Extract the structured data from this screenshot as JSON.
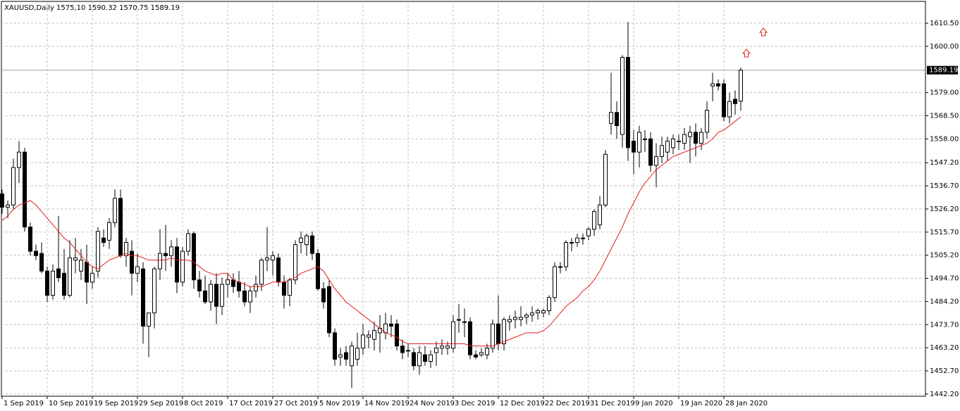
{
  "chart_data": {
    "type": "candlestick",
    "title": "XAUUSD,Daily  1575,10 1590.32 1570.75 1589.19",
    "categories": [
      "1 Sep 2019",
      null,
      null,
      null,
      null,
      null,
      null,
      null,
      "10 Sep 2019",
      null,
      null,
      null,
      null,
      null,
      null,
      null,
      "19 Sep 2019",
      null,
      null,
      null,
      null,
      null,
      null,
      null,
      "29 Sep 2019",
      null,
      null,
      null,
      null,
      null,
      null,
      null,
      "8 Oct 2019",
      null,
      null,
      null,
      null,
      null,
      null,
      null,
      "17 Oct 2019",
      null,
      null,
      null,
      null,
      null,
      null,
      null,
      "27 Oct 2019",
      null,
      null,
      null,
      null,
      null,
      null,
      null,
      "5 Nov 2019",
      null,
      null,
      null,
      null,
      null,
      null,
      null,
      "14 Nov 2019",
      null,
      null,
      null,
      null,
      null,
      null,
      null,
      "24 Nov 2019",
      null,
      null,
      null,
      null,
      null,
      null,
      null,
      "3 Dec 2019",
      null,
      null,
      null,
      null,
      null,
      null,
      null,
      "12 Dec 2019",
      null,
      null,
      null,
      null,
      null,
      null,
      null,
      "22 Dec 2019",
      null,
      null,
      null,
      null,
      null,
      null,
      null,
      "31 Dec 2019",
      null,
      null,
      null,
      null,
      null,
      null,
      null,
      "9 Jan 2020",
      null,
      null,
      null,
      null,
      null,
      null,
      null,
      "19 Jan 2020",
      null,
      null,
      null,
      null,
      null,
      null,
      null,
      "28 Jan 2020",
      null,
      null,
      null
    ],
    "open": [
      1533,
      1527,
      1528,
      1545,
      1552,
      1518,
      1507,
      1506,
      1498,
      1487,
      1499,
      1497,
      1487,
      1503,
      1498,
      1502,
      1493,
      1498,
      1513,
      1512,
      1520,
      1531,
      1505,
      1507,
      1497,
      1499,
      1473,
      1479,
      1499,
      1506,
      1505,
      1509,
      1493,
      1507,
      1515,
      1494,
      1489,
      1484,
      1492,
      1482,
      1492,
      1494,
      1493,
      1489,
      1484,
      1489,
      1492,
      1503,
      1503,
      1504,
      1493,
      1487,
      1494,
      1511,
      1510,
      1514,
      1506,
      1490,
      1491,
      1470,
      1459,
      1461,
      1455,
      1458,
      1463,
      1468,
      1467,
      1470,
      1470,
      1474,
      1474,
      1464,
      1462,
      1461,
      1455,
      1460,
      1457,
      1461,
      1463,
      1463,
      1463,
      1476,
      1475,
      1475,
      1460,
      1460,
      1460,
      1463,
      1474,
      1465,
      1475,
      1476,
      1476,
      1477,
      1478,
      1479,
      1479,
      1480,
      1486,
      1500,
      1500,
      1511,
      1511,
      1513,
      1514,
      1517,
      1519,
      1528,
      1565,
      1570,
      1560,
      1595,
      1557,
      1552,
      1558,
      1558,
      1546,
      1550,
      1552,
      1554,
      1557,
      1556,
      1559,
      1561,
      1556,
      1561,
      1582,
      1583,
      1583,
      1568,
      1576,
      1575.1
    ],
    "high": [
      1535,
      1530,
      1549,
      1557,
      1554,
      1520,
      1510,
      1511,
      1500,
      1501,
      1523,
      1508,
      1512,
      1513,
      1508,
      1510,
      1500,
      1518,
      1517,
      1522,
      1535,
      1535,
      1513,
      1512,
      1506,
      1502,
      1479,
      1500,
      1517,
      1519,
      1512,
      1513,
      1509,
      1517,
      1516,
      1498,
      1496,
      1494,
      1497,
      1495,
      1497,
      1497,
      1498,
      1493,
      1491,
      1496,
      1504,
      1518,
      1507,
      1506,
      1496,
      1495,
      1512,
      1516,
      1515,
      1516,
      1508,
      1493,
      1494,
      1472,
      1463,
      1464,
      1466,
      1470,
      1474,
      1471,
      1475,
      1478,
      1479,
      1478,
      1476,
      1467,
      1465,
      1463,
      1464,
      1464,
      1462,
      1466,
      1467,
      1466,
      1478,
      1483,
      1481,
      1477,
      1462,
      1463,
      1465,
      1476,
      1487,
      1477,
      1478,
      1480,
      1482,
      1479,
      1482,
      1481,
      1481,
      1487,
      1502,
      1502,
      1512,
      1513,
      1515,
      1515,
      1518,
      1526,
      1532,
      1553,
      1588,
      1575,
      1596,
      1611,
      1562,
      1564,
      1562,
      1561,
      1556,
      1559,
      1559,
      1560,
      1560,
      1563,
      1564,
      1565,
      1563,
      1575,
      1588,
      1585,
      1585,
      1579,
      1580,
      1590.32
    ],
    "low": [
      1524,
      1522,
      1526,
      1538,
      1516,
      1505,
      1503,
      1497,
      1484,
      1485,
      1493,
      1485,
      1486,
      1497,
      1494,
      1483,
      1490,
      1495,
      1509,
      1508,
      1518,
      1504,
      1500,
      1487,
      1493,
      1465,
      1459,
      1472,
      1494,
      1498,
      1500,
      1488,
      1491,
      1505,
      1490,
      1486,
      1483,
      1480,
      1474,
      1478,
      1486,
      1488,
      1486,
      1482,
      1479,
      1486,
      1489,
      1498,
      1496,
      1491,
      1481,
      1482,
      1492,
      1506,
      1505,
      1503,
      1489,
      1481,
      1468,
      1455,
      1455,
      1455,
      1445,
      1455,
      1460,
      1463,
      1462,
      1461,
      1467,
      1468,
      1462,
      1458,
      1459,
      1453,
      1451,
      1455,
      1454,
      1455,
      1460,
      1460,
      1461,
      1470,
      1468,
      1458,
      1458,
      1459,
      1458,
      1461,
      1462,
      1462,
      1471,
      1472,
      1473,
      1474,
      1475,
      1476,
      1477,
      1478,
      1484,
      1497,
      1498,
      1507,
      1509,
      1510,
      1512,
      1514,
      1517,
      1527,
      1560,
      1558,
      1554,
      1548,
      1542,
      1545,
      1552,
      1543,
      1536,
      1547,
      1548,
      1551,
      1553,
      1553,
      1547,
      1550,
      1553,
      1558,
      1575,
      1580,
      1566,
      1565,
      1569,
      1570.75
    ],
    "close": [
      1527,
      1528,
      1545,
      1552,
      1518,
      1507,
      1505,
      1498,
      1487,
      1498,
      1495,
      1487,
      1504,
      1504,
      1503,
      1493,
      1497,
      1516,
      1511,
      1520,
      1531,
      1505,
      1511,
      1497,
      1500,
      1473,
      1479,
      1499,
      1506,
      1505,
      1509,
      1493,
      1507,
      1515,
      1494,
      1489,
      1484,
      1492,
      1482,
      1492,
      1494,
      1491,
      1489,
      1484,
      1489,
      1492,
      1503,
      1504,
      1505,
      1493,
      1487,
      1494,
      1510,
      1513,
      1514,
      1506,
      1490,
      1484,
      1470,
      1458,
      1460,
      1458,
      1464,
      1463,
      1469,
      1469,
      1471,
      1472,
      1474,
      1473,
      1464,
      1461,
      1462,
      1455,
      1461,
      1457,
      1460,
      1463,
      1464,
      1464,
      1475,
      1476,
      1475,
      1460,
      1459,
      1461,
      1463,
      1474,
      1465,
      1476,
      1476,
      1477,
      1477,
      1478,
      1479,
      1480,
      1480,
      1486,
      1500,
      1500,
      1511,
      1511,
      1513,
      1513,
      1517,
      1525,
      1528,
      1551,
      1570,
      1564,
      1595,
      1554,
      1552,
      1561,
      1558,
      1546,
      1550,
      1555,
      1557,
      1558,
      1557,
      1560,
      1561,
      1556,
      1561,
      1571,
      1583,
      1582,
      1568,
      1575,
      1574,
      1589.19
    ],
    "ma_values": [
      1521,
      1523,
      1526,
      1528,
      1529,
      1530,
      1528,
      1525,
      1522,
      1519,
      1516,
      1513,
      1511,
      1508,
      1505,
      1502,
      1500,
      1499,
      1501,
      1503,
      1504,
      1505,
      1506,
      1505,
      1505,
      1504,
      1503,
      1503,
      1503,
      1503,
      1504,
      1503,
      1503,
      1503,
      1502,
      1500,
      1498,
      1497,
      1496,
      1497,
      1497,
      1494,
      1493,
      1492,
      1491,
      1491,
      1491,
      1492,
      1493,
      1493,
      1493,
      1494,
      1495,
      1497,
      1498,
      1499,
      1500,
      1498,
      1494,
      1490,
      1487,
      1484,
      1482,
      1480,
      1478,
      1476,
      1474,
      1472,
      1470,
      1469,
      1468,
      1466,
      1465,
      1465,
      1465,
      1465,
      1465,
      1465,
      1465,
      1465,
      1465,
      1465,
      1465,
      1464,
      1464,
      1464,
      1464,
      1464,
      1465,
      1466,
      1467,
      1468,
      1469,
      1470,
      1470,
      1470,
      1471,
      1473,
      1476,
      1479,
      1482,
      1484,
      1486,
      1489,
      1491,
      1494,
      1498,
      1503,
      1508,
      1513,
      1518,
      1524,
      1529,
      1534,
      1538,
      1541,
      1544,
      1546,
      1548,
      1550,
      1551,
      1552,
      1553,
      1554,
      1555,
      1556,
      1558,
      1561,
      1562,
      1564,
      1566,
      1568
    ],
    "ma_color": "#e02020",
    "up_color": "#ffffff",
    "down_color": "#000000",
    "last_price": 1589.19,
    "ylim": [
      1441.2,
      1620.4
    ],
    "yticks": [
      {
        "value": 1610.5,
        "label": "1610.50"
      },
      {
        "value": 1600,
        "label": "1600.00"
      },
      {
        "value": 1579,
        "label": "1579.00"
      },
      {
        "value": 1568.5,
        "label": "1568.50"
      },
      {
        "value": 1558,
        "label": "1558.00"
      },
      {
        "value": 1547.2,
        "label": "1547.20"
      },
      {
        "value": 1536.7,
        "label": "1536.70"
      },
      {
        "value": 1526.2,
        "label": "1526.20"
      },
      {
        "value": 1515.7,
        "label": "1515.70"
      },
      {
        "value": 1505.2,
        "label": "1505.20"
      },
      {
        "value": 1494.7,
        "label": "1494.70"
      },
      {
        "value": 1484.2,
        "label": "1484.20"
      },
      {
        "value": 1473.7,
        "label": "1473.70"
      },
      {
        "value": 1463.2,
        "label": "1463.20"
      },
      {
        "value": 1452.7,
        "label": "1452.70"
      },
      {
        "value": 1442.2,
        "label": "1442.20"
      }
    ],
    "grid": true
  }
}
